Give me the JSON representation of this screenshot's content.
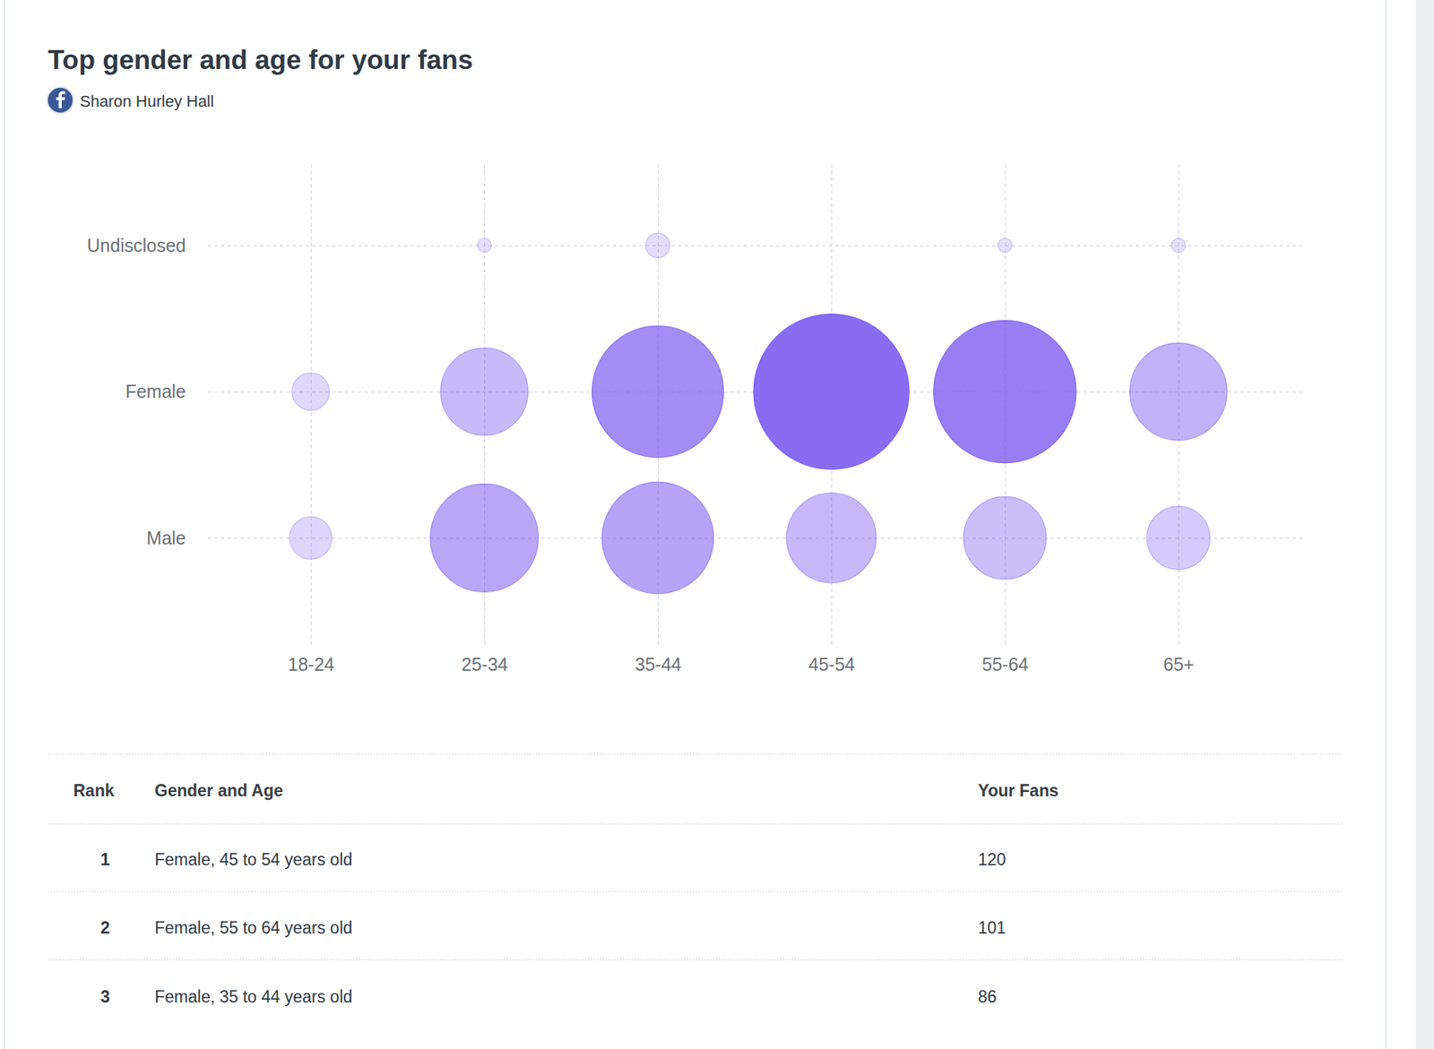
{
  "chart_data": {
    "type": "bubble",
    "title": "Top gender and age for your fans",
    "subtitle": "Sharon Hurley Hall",
    "categories": [
      "18-24",
      "25-34",
      "35-44",
      "45-54",
      "55-64",
      "65+"
    ],
    "color": "#7b5cf0",
    "grid": true,
    "series": [
      {
        "name": "Undisclosed",
        "values": [
          null,
          1,
          3,
          null,
          1,
          1
        ]
      },
      {
        "name": "Female",
        "values": [
          7,
          38,
          86,
          120,
          101,
          47
        ]
      },
      {
        "name": "Male",
        "values": [
          9,
          58,
          62,
          40,
          34,
          20
        ]
      }
    ]
  },
  "table": {
    "columns": [
      "Rank",
      "Gender and Age",
      "Your Fans"
    ],
    "rows": [
      [
        1,
        "Female, 45 to 54 years old",
        120
      ],
      [
        2,
        "Female, 55 to 64 years old",
        101
      ],
      [
        3,
        "Female, 35 to 44 years old",
        86
      ]
    ]
  }
}
